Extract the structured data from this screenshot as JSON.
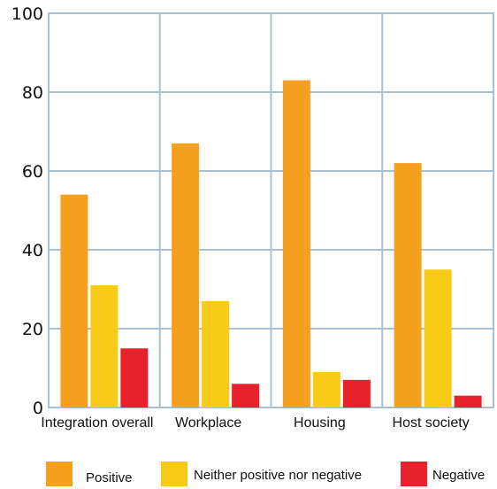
{
  "chart_data": {
    "type": "bar",
    "categories": [
      "Integration overall",
      "Workplace",
      "Housing",
      "Host society"
    ],
    "series": [
      {
        "name": "Positive",
        "values": [
          54,
          67,
          83,
          62
        ]
      },
      {
        "name": "Neither positive nor negative",
        "values": [
          31,
          27,
          9,
          35
        ]
      },
      {
        "name": "Negative",
        "values": [
          15,
          6,
          7,
          3
        ]
      }
    ],
    "ylim": [
      0,
      100
    ],
    "yticks": [
      0,
      20,
      40,
      60,
      80,
      100
    ],
    "grid": true,
    "legend": "bottom"
  },
  "colors": {
    "Positive": "#F5A01F",
    "Neither positive nor negative": "#F7CB17",
    "Negative": "#E8222C",
    "grid": "#A9C0D4"
  }
}
